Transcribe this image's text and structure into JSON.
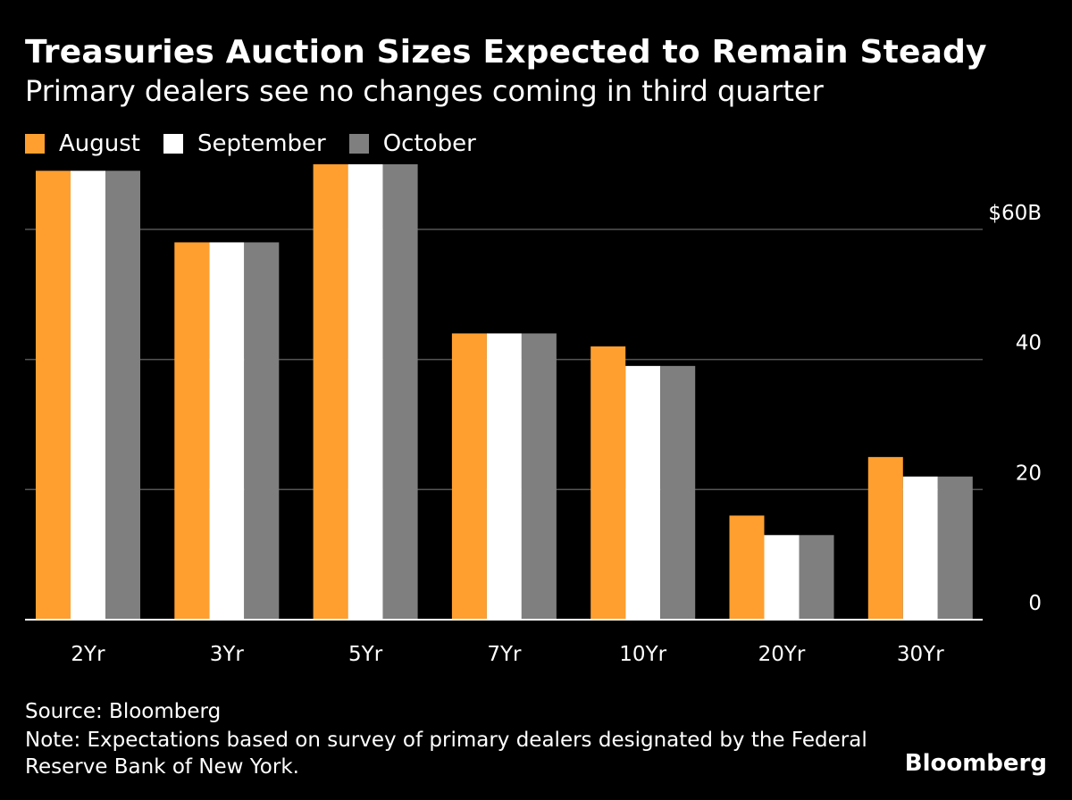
{
  "header": {
    "title": "Treasuries Auction Sizes Expected to Remain Steady",
    "subtitle": "Primary dealers see no changes coming in third quarter"
  },
  "footer": {
    "source": "Source: Bloomberg",
    "note": "Note: Expectations based on survey of primary dealers designated by the Federal Reserve Bank of New York.",
    "brand": "Bloomberg"
  },
  "colors": {
    "background": "#000000",
    "gridline": "#555555",
    "axis": "#ffffff"
  },
  "chart_data": {
    "type": "bar",
    "title": "Treasuries Auction Sizes Expected to Remain Steady",
    "subtitle": "Primary dealers see no changes coming in third quarter",
    "xlabel": "",
    "ylabel": "",
    "categories": [
      "2Yr",
      "3Yr",
      "5Yr",
      "7Yr",
      "10Yr",
      "20Yr",
      "30Yr"
    ],
    "series": [
      {
        "name": "August",
        "color": "#ff9f2f",
        "values": [
          69,
          58,
          70,
          44,
          42,
          16,
          25
        ]
      },
      {
        "name": "September",
        "color": "#ffffff",
        "values": [
          69,
          58,
          70,
          44,
          39,
          13,
          22
        ]
      },
      {
        "name": "October",
        "color": "#7f7f7f",
        "values": [
          69,
          58,
          70,
          44,
          39,
          13,
          22
        ]
      }
    ],
    "yticks": [
      {
        "value": 0,
        "label": "0"
      },
      {
        "value": 20,
        "label": "20"
      },
      {
        "value": 40,
        "label": "40"
      },
      {
        "value": 60,
        "label": "$60B"
      }
    ],
    "ylim": [
      0,
      70
    ],
    "grid": true,
    "legend": "top-left"
  }
}
